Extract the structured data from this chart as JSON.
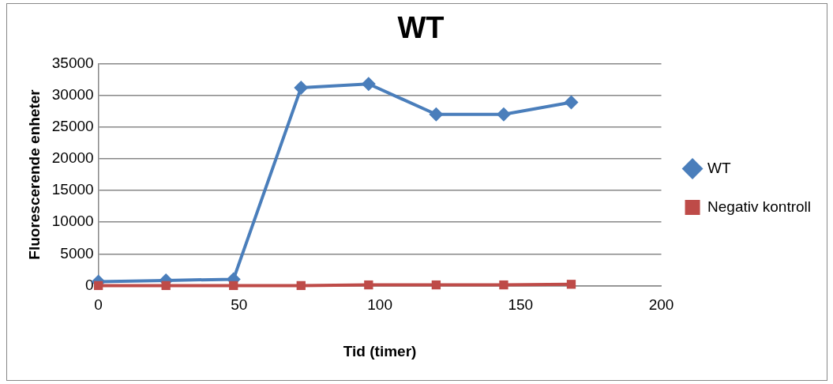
{
  "chart_data": {
    "type": "line",
    "title": "WT",
    "xlabel": "Tid (timer)",
    "ylabel": "Fluorescerende enheter",
    "x": [
      0,
      24,
      48,
      72,
      96,
      120,
      144,
      168
    ],
    "series": [
      {
        "name": "WT",
        "color": "#4a7ebb",
        "marker": "diamond",
        "values": [
          600,
          800,
          1000,
          31200,
          31800,
          27000,
          27000,
          28900
        ]
      },
      {
        "name": "Negativ kontroll",
        "color": "#be4b48",
        "marker": "square",
        "values": [
          0,
          0,
          0,
          0,
          100,
          100,
          100,
          200
        ]
      }
    ],
    "xlim": [
      0,
      200
    ],
    "xticks": [
      0,
      50,
      100,
      150,
      200
    ],
    "ylim": [
      0,
      35000
    ],
    "yticks": [
      0,
      5000,
      10000,
      15000,
      20000,
      25000,
      30000,
      35000
    ],
    "grid": "y",
    "legend": "right",
    "line_style": "solid"
  }
}
